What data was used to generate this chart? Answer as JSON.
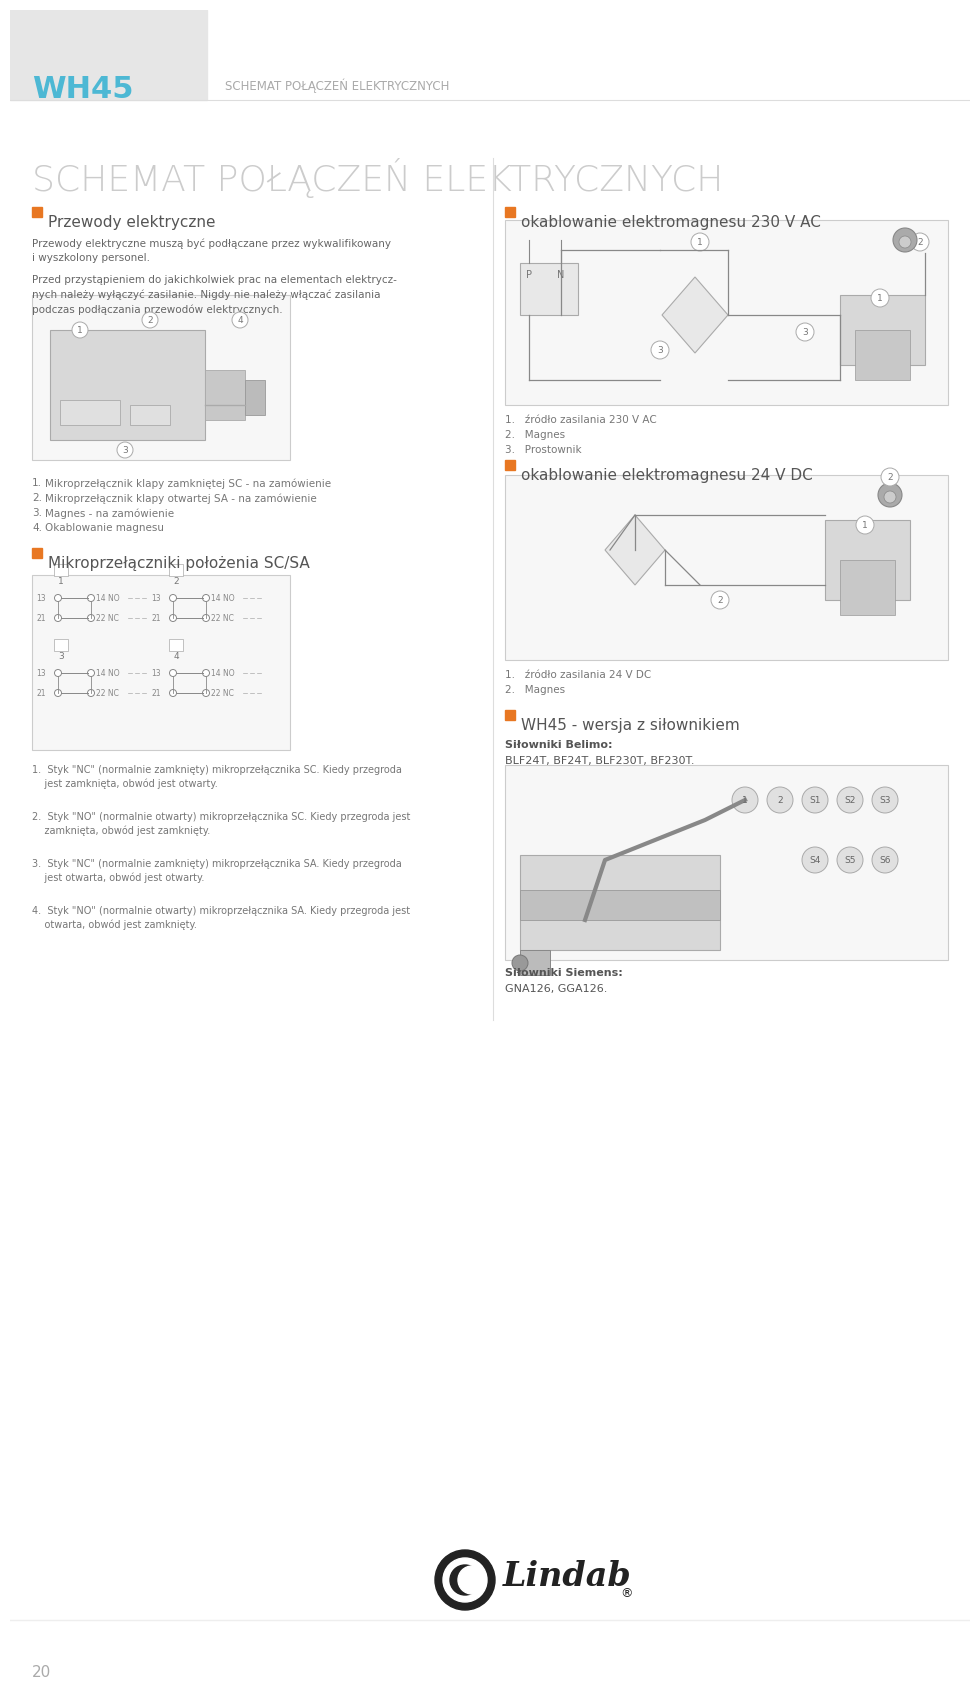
{
  "bg_color": "#ffffff",
  "header_bg": "#e6e6e6",
  "header_text_wh45": "WH45",
  "header_text_wh45_color": "#4db8d4",
  "header_subtitle": "SCHEMAT POŁĄCZEŃ ELEKTRYCZNYCH",
  "header_subtitle_color": "#aaaaaa",
  "page_title": "SCHEMAT POŁĄCZEŃ ELEKTRYCZNYCH",
  "page_title_color": "#cccccc",
  "orange_color": "#e87722",
  "section1_title": "Przewody elektryczne",
  "section1_body1": "Przewody elektryczne muszą być podłączane przez wykwalifikowany\ni wyszkolony personel.",
  "section1_body2": "Przed przystąpieniem do jakichkolwiek prac na elementach elektrycz-\nnych należy wyłączyć zasilanie. Nigdy nie należy włączać zasilania\npodczas podłączania przewodów elektrycznych.",
  "labels_left": [
    [
      "1.",
      "Mikroprzełącznik klapy zamkniętej SC - na zamówienie"
    ],
    [
      "2.",
      "Mikroprzełącznik klapy otwartej SA - na zamówienie"
    ],
    [
      "3.",
      "Magnes - na zamówienie"
    ],
    [
      "4.",
      "Okablowanie magnesu"
    ]
  ],
  "section2_title": "Mikroprzełączniki położenia SC/SA",
  "section2_labels": [
    "1.  Styk \"NC\" (normalnie zamknięty) mikroprzełącznika SC. Kiedy przegroda\n    jest zamknięta, obwód jest otwarty.",
    "2.  Styk \"NO\" (normalnie otwarty) mikroprzełącznika SC. Kiedy przegroda jest\n    zamknięta, obwód jest zamknięty.",
    "3.  Styk \"NC\" (normalnie zamknięty) mikroprzełącznika SA. Kiedy przegroda\n    jest otwarta, obwód jest otwarty.",
    "4.  Styk \"NO\" (normalnie otwarty) mikroprzełącznika SA. Kiedy przegroda jest\n    otwarta, obwód jest zamknięty."
  ],
  "right_section1_title": "okablowanie elektromagnesu 230 V AC",
  "right_section1_labels": [
    "1.   źródło zasilania 230 V AC",
    "2.   Magnes",
    "3.   Prostownik"
  ],
  "right_section2_title": "okablowanie elektromagnesu 24 V DC",
  "right_section2_labels": [
    "1.   źródło zasilania 24 V DC",
    "2.   Magnes"
  ],
  "right_section3_title": "WH45 - wersja z siłownikiem",
  "right_section3_belimo_bold": "Siłowniki Belimo:",
  "right_section3_belimo_normal": "BLF24T, BF24T, BLF230T, BF230T.",
  "right_section3_siemens_bold": "Siłowniki Siemens:",
  "right_section3_siemens_normal": "GNA126, GGA126.",
  "page_number": "20"
}
